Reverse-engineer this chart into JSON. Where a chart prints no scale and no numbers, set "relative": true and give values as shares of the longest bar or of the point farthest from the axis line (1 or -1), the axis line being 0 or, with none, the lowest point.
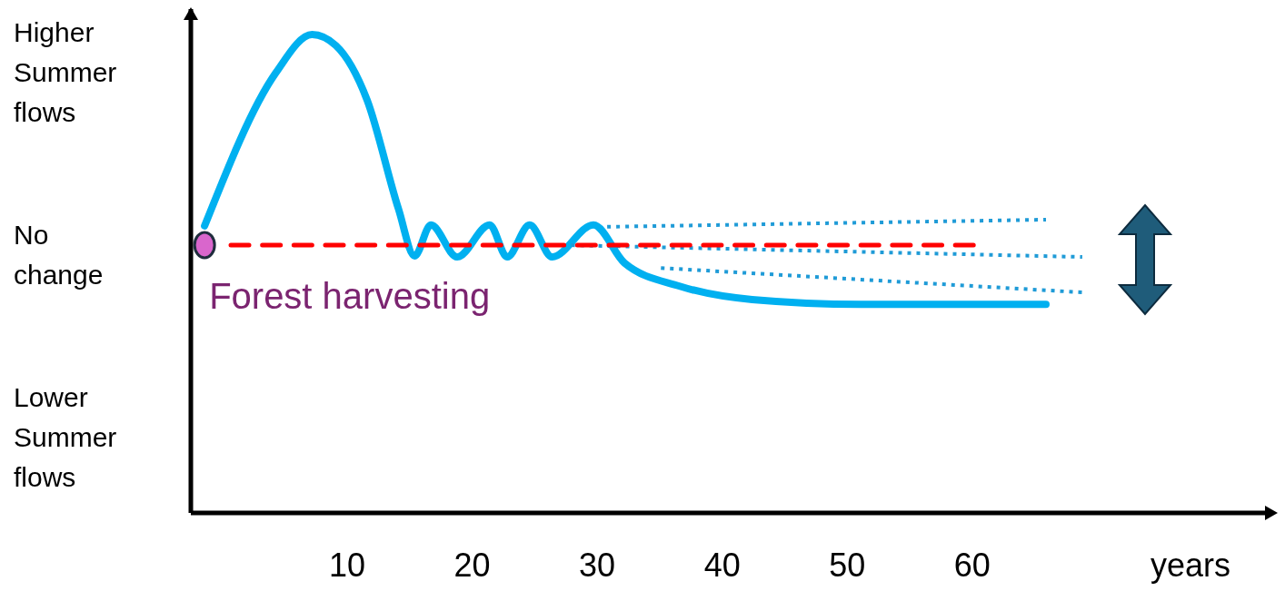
{
  "chart_data": {
    "type": "line",
    "relative": true,
    "xlabel": "years",
    "xlim": [
      -2.5,
      84
    ],
    "xticks": [
      10,
      20,
      30,
      40,
      50,
      60
    ],
    "marker": "none",
    "series": [
      {
        "color": "#00b0f0",
        "line_style": "solid",
        "x": [
          -1.4,
          4.3,
          7.2,
          9.1,
          11.6,
          14.1,
          15.4,
          16.7,
          18.8,
          21.4,
          22.8,
          24.6,
          26.4,
          29.7,
          32.2,
          36.6,
          42.4,
          51.1,
          65.9
        ],
        "values": [
          0.6,
          0.92,
          1,
          0.977,
          0.863,
          0.636,
          0.537,
          0.602,
          0.535,
          0.602,
          0.535,
          0.602,
          0.535,
          0.602,
          0.522,
          0.474,
          0.446,
          0.436,
          0.436
        ]
      },
      {
        "color": "#1f9bd7",
        "line_style": "dotted",
        "x": [
          30.8,
          65.9
        ],
        "values": [
          0.598,
          0.613
        ]
      },
      {
        "color": "#1f9bd7",
        "line_style": "dotted",
        "x": [
          27.2,
          68.8
        ],
        "values": [
          0.56,
          0.535
        ]
      },
      {
        "color": "#1f9bd7",
        "line_style": "dotted",
        "x": [
          35.1,
          68.8
        ],
        "values": [
          0.512,
          0.461
        ]
      },
      {
        "color": "#ff0000",
        "line_style": "dashed",
        "x": [
          0.7,
          60.1
        ],
        "values": [
          0.56,
          0.56
        ]
      },
      {
        "type": "scatter",
        "color": "#d966cc",
        "marker": "circle",
        "x": [
          -1.4
        ],
        "values": [
          0.56
        ]
      }
    ],
    "annotations": [
      "Higher Summer flows",
      "No change",
      "Lower Summer flows",
      {
        "text": "Forest harvesting",
        "x": -1.4,
        "y": 0.56
      }
    ]
  }
}
